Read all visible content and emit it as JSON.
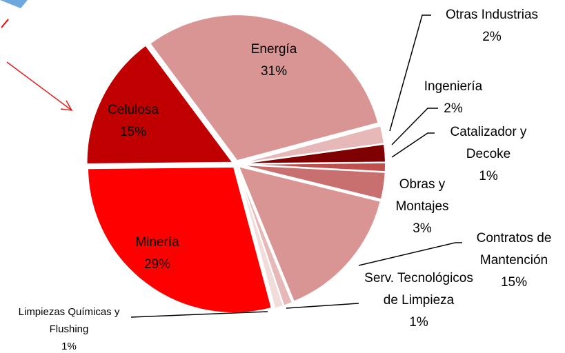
{
  "chart_data": {
    "type": "pie",
    "categories": [
      "Energía",
      "Otras Industrias",
      "Ingeniería",
      "Catalizador y Decoke",
      "Obras y Montajes",
      "Contratos de Mantención",
      "Serv. Tecnológicos de Limpieza",
      "Limpiezas Químicas y Flushing",
      "Minería",
      "Celulosa"
    ],
    "values": [
      31,
      2,
      2,
      1,
      3,
      15,
      1,
      1,
      29,
      15
    ],
    "value_labels": [
      "31%",
      "2%",
      "2%",
      "1%",
      "3%",
      "15%",
      "1%",
      "1%",
      "29%",
      "15%"
    ],
    "colors": [
      "#d99594",
      "#e6b9b8",
      "#7f0000",
      "#c0504d",
      "#c87070",
      "#d99594",
      "#e6b9b8",
      "#f2dcdb",
      "#ff0000",
      "#c00000"
    ]
  }
}
